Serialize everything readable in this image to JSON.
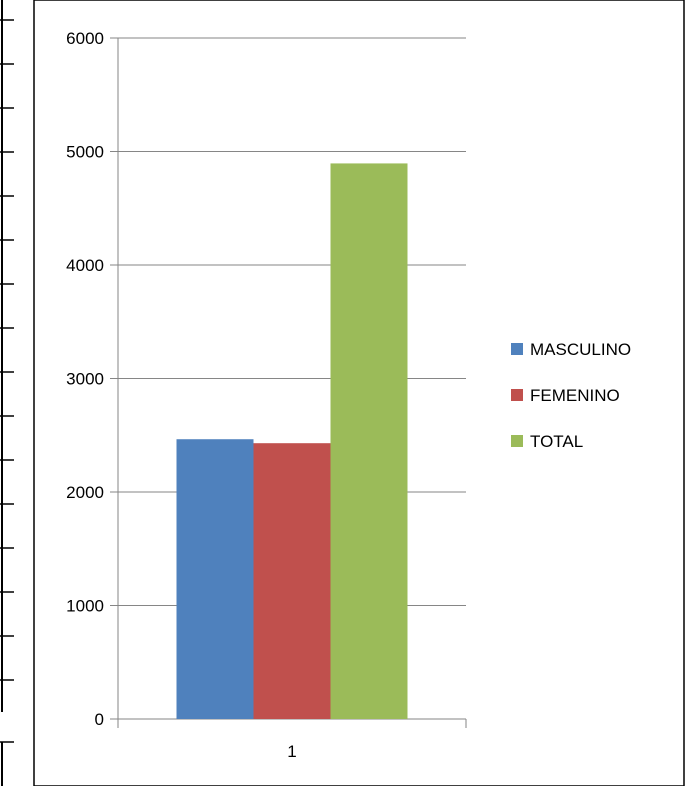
{
  "chart_data": {
    "type": "bar",
    "categories": [
      "1"
    ],
    "series": [
      {
        "name": "MASCULINO",
        "values": [
          2465
        ],
        "color": "#4F81BD"
      },
      {
        "name": "FEMENINO",
        "values": [
          2430
        ],
        "color": "#C0504D"
      },
      {
        "name": "TOTAL",
        "values": [
          4895
        ],
        "color": "#9BBB59"
      }
    ],
    "title": "",
    "xlabel": "",
    "ylabel": "",
    "ylim": [
      0,
      6000
    ],
    "yticks": [
      "0",
      "1000",
      "2000",
      "3000",
      "4000",
      "5000",
      "6000"
    ],
    "grid": true,
    "legend_position": "right"
  }
}
